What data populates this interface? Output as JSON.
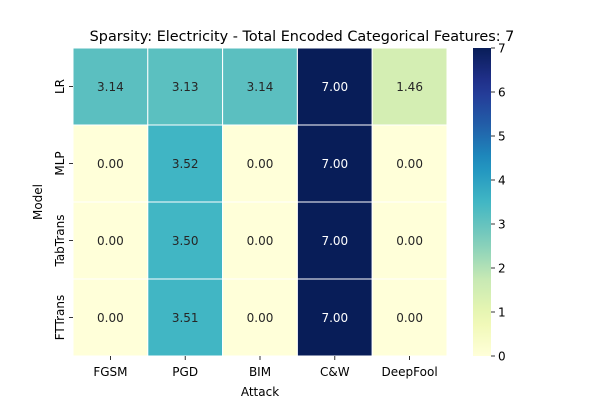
{
  "chart_data": {
    "type": "heatmap",
    "title": "Sparsity: Electricity - Total Encoded Categorical Features: 7",
    "xlabel": "Attack",
    "ylabel": "Model",
    "x_categories": [
      "FGSM",
      "PGD",
      "BIM",
      "C&W",
      "DeepFool"
    ],
    "y_categories": [
      "LR",
      "MLP",
      "TabTrans",
      "FTTrans"
    ],
    "values": [
      [
        3.14,
        3.13,
        3.14,
        7.0,
        1.46
      ],
      [
        0.0,
        3.52,
        0.0,
        7.0,
        0.0
      ],
      [
        0.0,
        3.5,
        0.0,
        7.0,
        0.0
      ],
      [
        0.0,
        3.51,
        0.0,
        7.0,
        0.0
      ]
    ],
    "value_labels": [
      [
        "3.14",
        "3.13",
        "3.14",
        "7.00",
        "1.46"
      ],
      [
        "0.00",
        "3.52",
        "0.00",
        "7.00",
        "0.00"
      ],
      [
        "0.00",
        "3.50",
        "0.00",
        "7.00",
        "0.00"
      ],
      [
        "0.00",
        "3.51",
        "0.00",
        "7.00",
        "0.00"
      ]
    ],
    "colorbar": {
      "min": 0,
      "max": 7,
      "ticks": [
        "0",
        "1",
        "2",
        "3",
        "4",
        "5",
        "6",
        "7"
      ],
      "colormap": "YlGnBu"
    }
  }
}
